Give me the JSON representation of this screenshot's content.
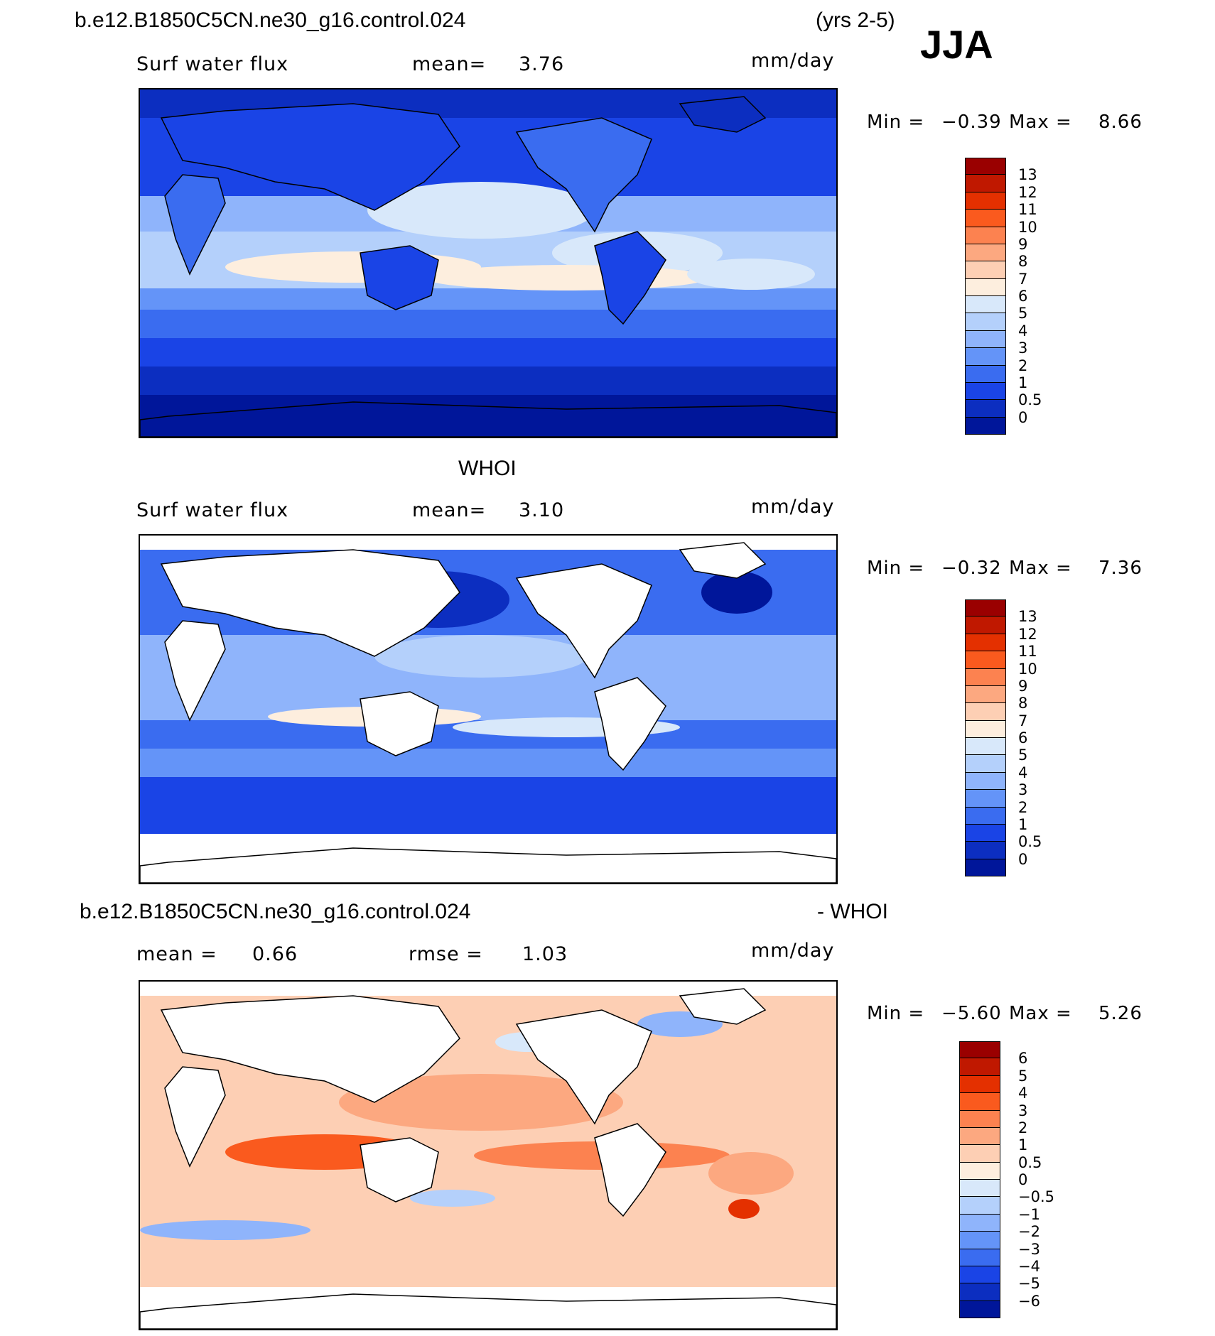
{
  "header": {
    "case_title": "b.e12.B1850C5CN.ne30_g16.control.024",
    "years": "(yrs 2-5)",
    "season": "JJA",
    "obs_title": "WHOI",
    "diff_title": "b.e12.B1850C5CN.ne30_g16.control.024",
    "diff_suffix": "- WHOI"
  },
  "panels": [
    {
      "variable": "Surf water flux",
      "mean_label": "mean=",
      "mean_value": "3.76",
      "units": "mm/day",
      "min_label": "Min =",
      "min_value": "−0.39",
      "max_label": "Max =",
      "max_value": "8.66"
    },
    {
      "variable": "Surf water flux",
      "mean_label": "mean=",
      "mean_value": "3.10",
      "units": "mm/day",
      "min_label": "Min =",
      "min_value": "−0.32",
      "max_label": "Max =",
      "max_value": "7.36"
    },
    {
      "mean_label": "mean =",
      "mean_value": "0.66",
      "rmse_label": "rmse =",
      "rmse_value": "1.03",
      "units": "mm/day",
      "min_label": "Min =",
      "min_value": "−5.60",
      "max_label": "Max =",
      "max_value": "5.26"
    }
  ],
  "colorbars": [
    {
      "colors": [
        "#9a0000",
        "#c01800",
        "#e43000",
        "#fa5a1e",
        "#fc8250",
        "#fca880",
        "#fdcfb4",
        "#fdeede",
        "#d8e8fa",
        "#b4d0fb",
        "#8fb4fb",
        "#6494f8",
        "#3a6cf0",
        "#1a44e6",
        "#0c2ec0",
        "#00169a"
      ],
      "labels": [
        "13",
        "12",
        "11",
        "10",
        "9",
        "8",
        "7",
        "6",
        "5",
        "4",
        "3",
        "2",
        "1",
        "0.5",
        "0"
      ]
    },
    {
      "colors": [
        "#9a0000",
        "#c01800",
        "#e43000",
        "#fa5a1e",
        "#fc8250",
        "#fca880",
        "#fdcfb4",
        "#fdeede",
        "#d8e8fa",
        "#b4d0fb",
        "#8fb4fb",
        "#6494f8",
        "#3a6cf0",
        "#1a44e6",
        "#0c2ec0",
        "#00169a"
      ],
      "labels": [
        "13",
        "12",
        "11",
        "10",
        "9",
        "8",
        "7",
        "6",
        "5",
        "4",
        "3",
        "2",
        "1",
        "0.5",
        "0"
      ]
    },
    {
      "colors": [
        "#9a0000",
        "#c01800",
        "#e43000",
        "#fa5a1e",
        "#fc8250",
        "#fca880",
        "#fdcfb4",
        "#fdeede",
        "#d8e8fa",
        "#b4d0fb",
        "#8fb4fb",
        "#6494f8",
        "#3a6cf0",
        "#1a44e6",
        "#0c2ec0",
        "#00169a"
      ],
      "labels": [
        "6",
        "5",
        "4",
        "3",
        "2",
        "1",
        "0.5",
        "0",
        "−0.5",
        "−1",
        "−2",
        "−3",
        "−4",
        "−5",
        "−6"
      ]
    }
  ],
  "chart_data": [
    {
      "type": "heatmap",
      "title": "Surf water flux",
      "units": "mm/day",
      "mean": 3.76,
      "min": -0.39,
      "max": 8.66,
      "levels": [
        0,
        0.5,
        1,
        2,
        3,
        4,
        5,
        6,
        7,
        8,
        9,
        10,
        11,
        12,
        13
      ]
    },
    {
      "type": "heatmap",
      "title": "Surf water flux",
      "units": "mm/day",
      "mean": 3.1,
      "min": -0.32,
      "max": 7.36,
      "levels": [
        0,
        0.5,
        1,
        2,
        3,
        4,
        5,
        6,
        7,
        8,
        9,
        10,
        11,
        12,
        13
      ]
    },
    {
      "type": "heatmap",
      "units": "mm/day",
      "mean": 0.66,
      "rmse": 1.03,
      "min": -5.6,
      "max": 5.26,
      "levels": [
        -6,
        -5,
        -4,
        -3,
        -2,
        -1,
        -0.5,
        0,
        0.5,
        1,
        2,
        3,
        4,
        5,
        6
      ]
    }
  ]
}
